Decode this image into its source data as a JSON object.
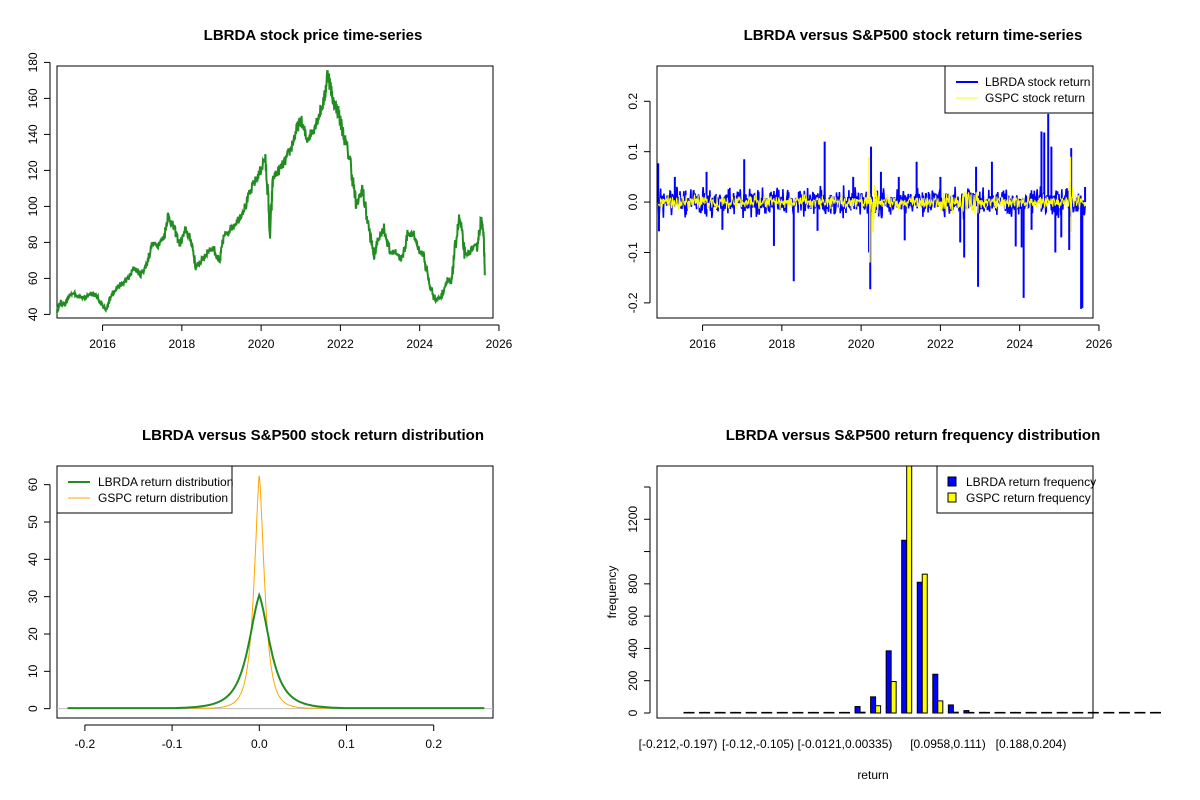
{
  "colors": {
    "lbrda_price": "#228B22",
    "lbrda_return": "#0000FF",
    "gspc_return": "#FFFF00",
    "lbrda_density": "#228B22",
    "gspc_density": "#FFA500",
    "baseline": "#BEBEBE",
    "hist_lbrda": "#0000FF",
    "hist_gspc": "#FFFF00"
  },
  "chart_data": [
    {
      "id": "price",
      "type": "line",
      "title": "LBRDA stock price time-series",
      "xlabel": "",
      "ylabel": "",
      "xlim": [
        2014.85,
        2025.85
      ],
      "ylim": [
        38,
        178
      ],
      "x_ticks": [
        2016,
        2018,
        2020,
        2022,
        2024,
        2026
      ],
      "x_tick_labels": [
        "2016",
        "2018",
        "2020",
        "2022",
        "2024",
        "2026"
      ],
      "y_ticks": [
        40,
        60,
        80,
        100,
        120,
        140,
        160,
        180
      ],
      "y_tick_labels": [
        "40",
        "60",
        "80",
        "100",
        "120",
        "140",
        "160",
        "180"
      ],
      "series": [
        {
          "name": "LBRDA",
          "x": [
            2014.85,
            2014.95,
            2015.05,
            2015.15,
            2015.25,
            2015.4,
            2015.55,
            2015.7,
            2015.85,
            2016.0,
            2016.1,
            2016.2,
            2016.35,
            2016.5,
            2016.65,
            2016.8,
            2016.95,
            2017.1,
            2017.25,
            2017.4,
            2017.55,
            2017.65,
            2017.8,
            2017.95,
            2018.1,
            2018.25,
            2018.35,
            2018.5,
            2018.65,
            2018.8,
            2018.95,
            2019.05,
            2019.2,
            2019.4,
            2019.6,
            2019.8,
            2019.95,
            2020.1,
            2020.18,
            2020.22,
            2020.3,
            2020.45,
            2020.6,
            2020.75,
            2020.9,
            2021.0,
            2021.15,
            2021.3,
            2021.45,
            2021.6,
            2021.68,
            2021.8,
            2021.95,
            2022.1,
            2022.25,
            2022.4,
            2022.55,
            2022.7,
            2022.85,
            2022.95,
            2023.1,
            2023.25,
            2023.4,
            2023.55,
            2023.7,
            2023.85,
            2024.0,
            2024.1,
            2024.25,
            2024.4,
            2024.55,
            2024.7,
            2024.8,
            2024.88,
            2025.0,
            2025.15,
            2025.3,
            2025.45,
            2025.55,
            2025.6,
            2025.65
          ],
          "values": [
            42,
            47,
            45,
            50,
            52,
            50,
            49,
            52,
            50,
            45,
            42,
            50,
            55,
            57,
            60,
            66,
            62,
            67,
            79,
            79,
            83,
            95,
            88,
            79,
            87,
            80,
            66,
            70,
            75,
            77,
            68,
            83,
            87,
            92,
            100,
            112,
            118,
            127,
            105,
            82,
            116,
            120,
            125,
            132,
            143,
            148,
            137,
            142,
            150,
            160,
            175,
            160,
            152,
            138,
            125,
            100,
            110,
            90,
            72,
            82,
            88,
            74,
            75,
            70,
            85,
            84,
            75,
            73,
            56,
            48,
            50,
            60,
            57,
            75,
            94,
            72,
            76,
            78,
            93,
            88,
            62
          ]
        }
      ]
    },
    {
      "id": "returns",
      "type": "line",
      "title": "LBRDA versus S&P500 stock return time-series",
      "xlabel": "",
      "ylabel": "",
      "xlim": [
        2014.85,
        2025.85
      ],
      "ylim": [
        -0.23,
        0.27
      ],
      "x_ticks": [
        2016,
        2018,
        2020,
        2022,
        2024,
        2026
      ],
      "x_tick_labels": [
        "2016",
        "2018",
        "2020",
        "2022",
        "2024",
        "2026"
      ],
      "y_ticks": [
        -0.2,
        -0.1,
        0.0,
        0.1,
        0.2
      ],
      "y_tick_labels": [
        "-0.2",
        "-0.1",
        "0.0",
        "0.1",
        "0.2"
      ],
      "legend": {
        "position": "top-right",
        "entries": [
          "LBRDA stock return",
          "GSPC stock return"
        ]
      },
      "series": [
        {
          "name": "LBRDA stock return",
          "spikes": [
            [
              2014.88,
              0.077
            ],
            [
              2014.9,
              -0.058
            ],
            [
              2015.3,
              0.05
            ],
            [
              2016.1,
              0.06
            ],
            [
              2016.5,
              -0.055
            ],
            [
              2017.05,
              0.085
            ],
            [
              2017.8,
              -0.087
            ],
            [
              2018.3,
              -0.157
            ],
            [
              2018.9,
              -0.057
            ],
            [
              2019.08,
              0.12
            ],
            [
              2019.8,
              0.05
            ],
            [
              2020.2,
              -0.1
            ],
            [
              2020.25,
              0.11
            ],
            [
              2020.23,
              -0.173
            ],
            [
              2020.5,
              0.06
            ],
            [
              2020.95,
              0.05
            ],
            [
              2021.1,
              -0.076
            ],
            [
              2021.4,
              0.08
            ],
            [
              2022.0,
              0.05
            ],
            [
              2022.5,
              -0.08
            ],
            [
              2022.6,
              -0.11
            ],
            [
              2022.9,
              0.07
            ],
            [
              2022.95,
              -0.168
            ],
            [
              2023.3,
              0.08
            ],
            [
              2023.9,
              -0.088
            ],
            [
              2024.05,
              -0.09
            ],
            [
              2024.1,
              -0.19
            ],
            [
              2024.3,
              -0.055
            ],
            [
              2024.55,
              0.14
            ],
            [
              2024.62,
              0.138
            ],
            [
              2024.72,
              0.175
            ],
            [
              2024.8,
              0.11
            ],
            [
              2024.9,
              -0.1
            ],
            [
              2025.05,
              -0.07
            ],
            [
              2025.25,
              -0.095
            ],
            [
              2025.3,
              0.107
            ],
            [
              2025.55,
              -0.212
            ],
            [
              2025.58,
              -0.21
            ],
            [
              2025.65,
              0.03
            ]
          ],
          "noise_amplitude": 0.025
        },
        {
          "name": "GSPC stock return",
          "spikes": [
            [
              2020.2,
              0.09
            ],
            [
              2020.22,
              -0.12
            ],
            [
              2020.3,
              -0.06
            ],
            [
              2025.28,
              0.09
            ],
            [
              2025.3,
              -0.06
            ]
          ],
          "noise_amplitude": 0.012
        }
      ]
    },
    {
      "id": "density",
      "type": "line",
      "title": "LBRDA versus S&P500 stock return distribution",
      "xlabel": "",
      "ylabel": "",
      "xlim": [
        -0.232,
        0.268
      ],
      "ylim": [
        -2.5,
        65
      ],
      "x_ticks": [
        -0.2,
        -0.1,
        0.0,
        0.1,
        0.2
      ],
      "x_tick_labels": [
        "-0.2",
        "-0.1",
        "0.0",
        "0.1",
        "0.2"
      ],
      "y_ticks": [
        0,
        10,
        20,
        30,
        40,
        50,
        60
      ],
      "y_tick_labels": [
        "0",
        "10",
        "20",
        "30",
        "40",
        "50",
        "60"
      ],
      "legend": {
        "position": "top-left",
        "entries": [
          "LBRDA return distribution",
          "GSPC return distribution"
        ]
      },
      "series": [
        {
          "name": "LBRDA return distribution",
          "peak": 30.5,
          "center": 0.0,
          "scale": 0.016,
          "xrange": [
            -0.22,
            0.258
          ]
        },
        {
          "name": "GSPC return distribution",
          "peak": 63,
          "center": 0.0,
          "scale": 0.0075,
          "xrange": [
            -0.13,
            0.09
          ]
        }
      ]
    },
    {
      "id": "histogram",
      "type": "bar",
      "title": "LBRDA versus S&P500 return frequency distribution",
      "xlabel": "return",
      "ylabel": "frequency",
      "ylim": [
        0,
        1530
      ],
      "y_ticks": [
        0,
        200,
        400,
        600,
        800,
        1000,
        1200,
        1400
      ],
      "y_tick_labels": [
        "0",
        "200",
        "400",
        "600",
        "800",
        "",
        "1200",
        ""
      ],
      "category_tick_labels": [
        "[-0.212,-0.197)",
        "[-0.12,-0.105)",
        "[-0.0121,0.00335)",
        "[0.0958,0.111)",
        "[0.188,0.204)"
      ],
      "legend": {
        "position": "top-right",
        "entries": [
          "LBRDA return frequency",
          "GSPC return frequency"
        ]
      },
      "series": [
        {
          "name": "LBRDA return frequency",
          "values": [
            1,
            1,
            4,
            0,
            0,
            0,
            0,
            0,
            3,
            2,
            3,
            40,
            100,
            385,
            1070,
            810,
            240,
            50,
            15,
            4,
            3,
            3,
            0,
            0,
            0,
            0,
            0,
            0,
            0,
            0,
            1
          ]
        },
        {
          "name": "GSPC return frequency",
          "values": [
            0,
            0,
            0,
            0,
            0,
            0,
            0,
            0,
            1,
            1,
            1,
            5,
            45,
            195,
            1530,
            860,
            75,
            5,
            1,
            1,
            0,
            0,
            0,
            0,
            0,
            0,
            0,
            0,
            0,
            0,
            0
          ]
        }
      ]
    }
  ]
}
